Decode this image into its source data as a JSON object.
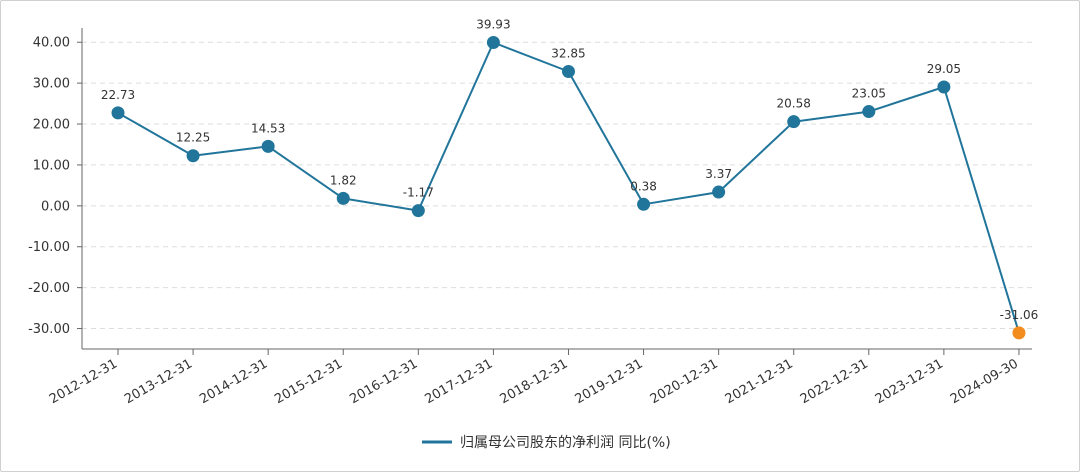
{
  "chart_data": {
    "type": "line",
    "x": [
      "2012-12-31",
      "2013-12-31",
      "2014-12-31",
      "2015-12-31",
      "2016-12-31",
      "2017-12-31",
      "2018-12-31",
      "2019-12-31",
      "2020-12-31",
      "2021-12-31",
      "2022-12-31",
      "2023-12-31",
      "2024-09-30"
    ],
    "series": [
      {
        "name": "归属母公司股东的净利润 同比(%)",
        "values": [
          22.73,
          12.25,
          14.53,
          1.82,
          -1.17,
          39.93,
          32.85,
          0.38,
          3.37,
          20.58,
          23.05,
          29.05,
          -31.06
        ],
        "data_labels": [
          "22.73",
          "12.25",
          "14.53",
          "1.82",
          "-1.17",
          "39.93",
          "32.85",
          "0.38",
          "3.37",
          "20.58",
          "23.05",
          "29.05",
          "-31.06"
        ]
      }
    ],
    "y_ticks": [
      "40.00",
      "30.00",
      "20.00",
      "10.00",
      "0.00",
      "-10.00",
      "-20.00",
      "-30.00"
    ],
    "ylim": [
      -35,
      42.5
    ],
    "grid": true,
    "legend_position": "bottom-center",
    "colors": {
      "line": "#21759b",
      "highlight": "#f28c1e",
      "grid": "#dddddd",
      "axis": "#666666"
    }
  }
}
